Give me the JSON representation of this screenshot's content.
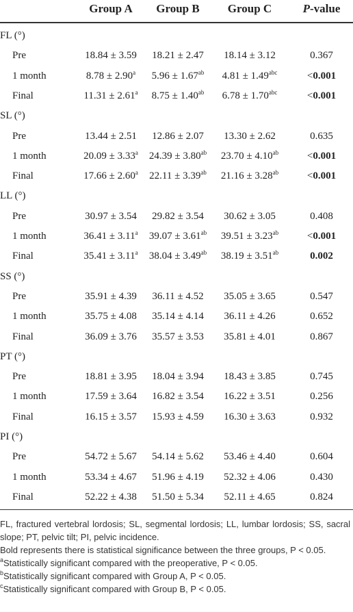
{
  "table": {
    "header": [
      "Group A",
      "Group B",
      "Group C",
      {
        "italic": "P",
        "text": "-value"
      }
    ],
    "sections": [
      {
        "label": "FL (°)",
        "rows": [
          {
            "time": "Pre",
            "cells": [
              {
                "text": "18.84 ± 3.59"
              },
              {
                "text": "18.21 ± 2.47"
              },
              {
                "text": "18.14 ± 3.12"
              }
            ],
            "p": {
              "text": "0.367"
            }
          },
          {
            "time": "1 month",
            "cells": [
              {
                "text": "8.78 ± 2.90",
                "sup": "a"
              },
              {
                "text": "5.96 ± 1.67",
                "sup": "ab"
              },
              {
                "text": "4.81 ± 1.49",
                "sup": "abc"
              }
            ],
            "p": {
              "prefix": "<",
              "text": "0.001",
              "bold": true
            }
          },
          {
            "time": "Final",
            "cells": [
              {
                "text": "11.31 ± 2.61",
                "sup": "a"
              },
              {
                "text": "8.75 ± 1.40",
                "sup": "ab"
              },
              {
                "text": "6.78 ± 1.70",
                "sup": "abc"
              }
            ],
            "p": {
              "prefix": "<",
              "text": "0.001",
              "bold": true
            }
          }
        ]
      },
      {
        "label": "SL (°)",
        "rows": [
          {
            "time": "Pre",
            "cells": [
              {
                "text": "13.44 ± 2.51"
              },
              {
                "text": "12.86 ± 2.07"
              },
              {
                "text": "13.30 ± 2.62"
              }
            ],
            "p": {
              "text": "0.635"
            }
          },
          {
            "time": "1 month",
            "cells": [
              {
                "text": "20.09 ± 3.33",
                "sup": "a"
              },
              {
                "text": "24.39 ± 3.80",
                "sup": "ab"
              },
              {
                "text": "23.70 ± 4.10",
                "sup": "ab"
              }
            ],
            "p": {
              "prefix": "<",
              "text": "0.001",
              "bold": true
            }
          },
          {
            "time": "Final",
            "cells": [
              {
                "text": "17.66 ± 2.60",
                "sup": "a"
              },
              {
                "text": "22.11 ± 3.39",
                "sup": "ab"
              },
              {
                "text": "21.16 ± 3.28",
                "sup": "ab"
              }
            ],
            "p": {
              "prefix": "<",
              "text": "0.001",
              "bold": true
            }
          }
        ]
      },
      {
        "label": "LL (°)",
        "rows": [
          {
            "time": "Pre",
            "cells": [
              {
                "text": "30.97 ± 3.54"
              },
              {
                "text": "29.82 ± 3.54"
              },
              {
                "text": "30.62 ± 3.05"
              }
            ],
            "p": {
              "text": "0.408"
            }
          },
          {
            "time": "1 month",
            "cells": [
              {
                "text": "36.41 ± 3.11",
                "sup": "a"
              },
              {
                "text": "39.07 ± 3.61",
                "sup": "ab"
              },
              {
                "text": "39.51 ± 3.23",
                "sup": "ab"
              }
            ],
            "p": {
              "prefix": "<",
              "text": "0.001",
              "bold": true
            }
          },
          {
            "time": "Final",
            "cells": [
              {
                "text": "35.41 ± 3.11",
                "sup": "a"
              },
              {
                "text": "38.04 ± 3.49",
                "sup": "ab"
              },
              {
                "text": "38.19 ± 3.51",
                "sup": "ab"
              }
            ],
            "p": {
              "text": "0.002",
              "bold": true
            }
          }
        ]
      },
      {
        "label": "SS (°)",
        "rows": [
          {
            "time": "Pre",
            "cells": [
              {
                "text": "35.91 ± 4.39"
              },
              {
                "text": "36.11 ± 4.52"
              },
              {
                "text": "35.05 ± 3.65"
              }
            ],
            "p": {
              "text": "0.547"
            }
          },
          {
            "time": "1 month",
            "cells": [
              {
                "text": "35.75 ± 4.08"
              },
              {
                "text": "35.14 ± 4.14"
              },
              {
                "text": "36.11 ± 4.26"
              }
            ],
            "p": {
              "text": "0.652"
            }
          },
          {
            "time": "Final",
            "cells": [
              {
                "text": "36.09 ± 3.76"
              },
              {
                "text": "35.57 ± 3.53"
              },
              {
                "text": "35.81 ± 4.01"
              }
            ],
            "p": {
              "text": "0.867"
            }
          }
        ]
      },
      {
        "label": "PT (°)",
        "rows": [
          {
            "time": "Pre",
            "cells": [
              {
                "text": "18.81 ± 3.95"
              },
              {
                "text": "18.04 ± 3.94"
              },
              {
                "text": "18.43 ± 3.85"
              }
            ],
            "p": {
              "text": "0.745"
            }
          },
          {
            "time": "1 month",
            "cells": [
              {
                "text": "17.59 ± 3.64"
              },
              {
                "text": "16.82 ± 3.54"
              },
              {
                "text": "16.22 ± 3.51"
              }
            ],
            "p": {
              "text": "0.256"
            }
          },
          {
            "time": "Final",
            "cells": [
              {
                "text": "16.15 ± 3.57"
              },
              {
                "text": "15.93 ± 4.59"
              },
              {
                "text": "16.30 ± 3.63"
              }
            ],
            "p": {
              "text": "0.932"
            }
          }
        ]
      },
      {
        "label": "PI (°)",
        "rows": [
          {
            "time": "Pre",
            "cells": [
              {
                "text": "54.72 ± 5.67"
              },
              {
                "text": "54.14 ± 5.62"
              },
              {
                "text": "53.46 ± 4.40"
              }
            ],
            "p": {
              "text": "0.604"
            }
          },
          {
            "time": "1 month",
            "cells": [
              {
                "text": "53.34 ± 4.67"
              },
              {
                "text": "51.96 ± 4.19"
              },
              {
                "text": "52.32 ± 4.06"
              }
            ],
            "p": {
              "text": "0.430"
            }
          },
          {
            "time": "Final",
            "cells": [
              {
                "text": "52.22 ± 4.38"
              },
              {
                "text": "51.50 ± 5.34"
              },
              {
                "text": "52.11 ± 4.65"
              }
            ],
            "p": {
              "text": "0.824"
            }
          }
        ]
      }
    ]
  },
  "footnotes": [
    {
      "text": "FL, fractured vertebral lordosis; SL, segmental lordosis; LL, lumbar lordosis; SS, sacral slope; PT, pelvic tilt; PI, pelvic incidence."
    },
    {
      "text": "Bold represents there is statistical significance between the three groups, P < 0.05."
    },
    {
      "mark": "a",
      "text": "Statistically significant compared with the preoperative, P < 0.05."
    },
    {
      "mark": "b",
      "text": "Statistically significant compared with Group A, P < 0.05."
    },
    {
      "mark": "c",
      "text": "Statistically significant compared with Group B, P < 0.05."
    }
  ]
}
